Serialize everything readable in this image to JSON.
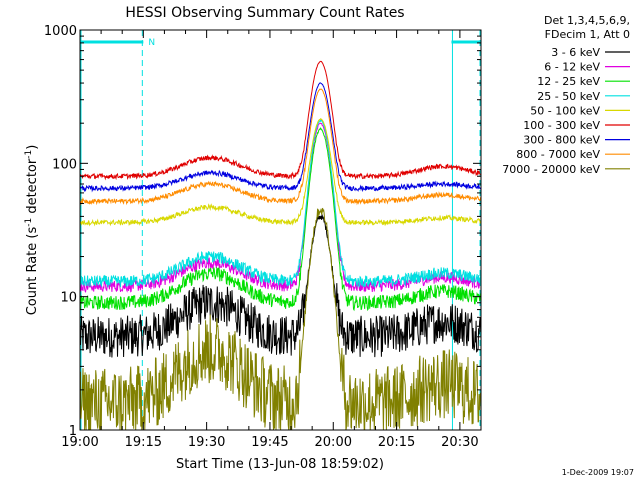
{
  "chart_data": {
    "type": "line",
    "title": "HESSI Observing Summary Count Rates",
    "xlabel": "Start Time (13-Jun-08 18:59:02)",
    "ylabel_main": "Count Rate (s",
    "ylabel_sup1": "-1",
    "ylabel_mid": " detector",
    "ylabel_sup2": "-1",
    "ylabel_end": ")",
    "yscale": "log",
    "ylim": [
      1,
      1000
    ],
    "xlim_minutes": [
      0,
      95
    ],
    "x_unit": "minutes after 19:00",
    "x_ticks": [
      {
        "label": "19:00",
        "minutes": 0
      },
      {
        "label": "19:15",
        "minutes": 15
      },
      {
        "label": "19:30",
        "minutes": 30
      },
      {
        "label": "19:45",
        "minutes": 45
      },
      {
        "label": "20:00",
        "minutes": 60
      },
      {
        "label": "20:15",
        "minutes": 75
      },
      {
        "label": "20:30",
        "minutes": 90
      }
    ],
    "y_ticks": [
      {
        "label": "1",
        "value": 1
      },
      {
        "label": "10",
        "value": 10
      },
      {
        "label": "100",
        "value": 100
      },
      {
        "label": "1000",
        "value": 1000
      }
    ],
    "legend": {
      "placement": "right",
      "header_line1": "Det 1,3,4,5,6,9,",
      "header_line2": "FDecim 1, Att 0"
    },
    "night_marker_label": "N",
    "night_intervals_minutes": [
      [
        0,
        15
      ],
      [
        88,
        95
      ]
    ],
    "bkg_hump_center_minutes": [
      31,
      86
    ],
    "peak_minutes": 57,
    "series": [
      {
        "name": "3 - 6 keV",
        "color": "#000000",
        "base": 5,
        "hump1": 9,
        "hump2": 6.5,
        "peak": 40,
        "noise": 0.35
      },
      {
        "name": "6 - 12 keV",
        "color": "#e000e0",
        "base": 12,
        "hump1": 18,
        "hump2": 14,
        "peak": 200,
        "noise": 0.1
      },
      {
        "name": "12 - 25 keV",
        "color": "#00e000",
        "base": 9,
        "hump1": 15,
        "hump2": 11,
        "peak": 180,
        "noise": 0.12
      },
      {
        "name": "25 - 50 keV",
        "color": "#00e0e0",
        "base": 13,
        "hump1": 20,
        "hump2": 15,
        "peak": 210,
        "noise": 0.1
      },
      {
        "name": "50 - 100 keV",
        "color": "#d8d800",
        "base": 36,
        "hump1": 47,
        "hump2": 39,
        "peak": 215,
        "noise": 0.04
      },
      {
        "name": "100 - 300 keV",
        "color": "#e00000",
        "base": 80,
        "hump1": 110,
        "hump2": 95,
        "peak": 580,
        "noise": 0.04
      },
      {
        "name": "300 - 800 keV",
        "color": "#0000e0",
        "base": 65,
        "hump1": 85,
        "hump2": 70,
        "peak": 400,
        "noise": 0.04
      },
      {
        "name": "800 - 7000 keV",
        "color": "#ff8c00",
        "base": 52,
        "hump1": 70,
        "hump2": 58,
        "peak": 360,
        "noise": 0.04
      },
      {
        "name": "7000 - 20000 keV",
        "color": "#808000",
        "base": 1.6,
        "hump1": 4,
        "hump2": 2.2,
        "peak": 45,
        "noise": 0.6
      }
    ]
  },
  "footer": {
    "date_stamp": "1-Dec-2009 19:07"
  }
}
